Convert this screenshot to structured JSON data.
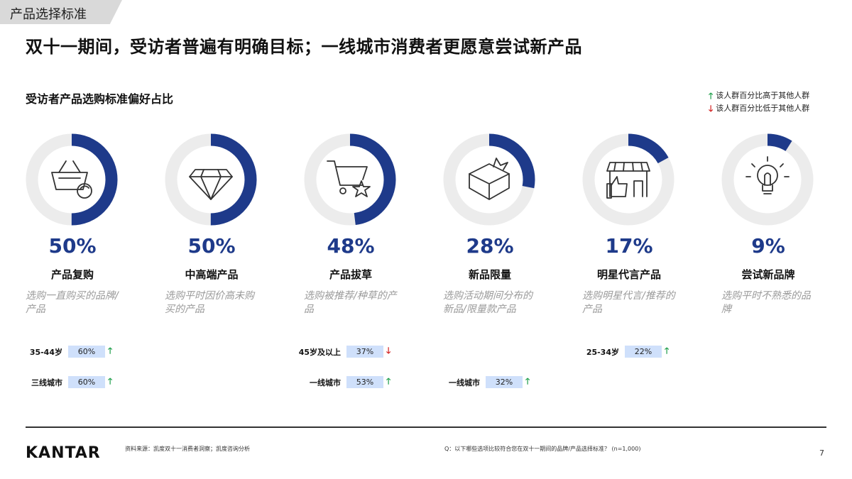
{
  "section_tag": "产品选择标准",
  "headline": "双十一期间，受访者普遍有明确目标；一线城市消费者更愿意尝试新产品",
  "chart_title": "受访者产品选购标准偏好占比",
  "legend": {
    "up_label": "该人群百分比高于其他人群",
    "down_label": "该人群百分比低于其他人群",
    "up_color": "#1e9e4a",
    "down_color": "#d21f1f"
  },
  "colors": {
    "ring_fill": "#1e3a8a",
    "ring_track": "#ececec",
    "stat_bg": "#cfe0fb"
  },
  "chart_data": {
    "type": "donut",
    "title": "受访者产品选购标准偏好占比",
    "categories": [
      {
        "name": "产品复购",
        "value": 50,
        "display": "50%",
        "icon": "basket-refresh-icon",
        "description": "选购一直购买的品牌/产品",
        "segments": [
          {
            "label": "35-44岁",
            "value": "60%",
            "trend": "up"
          },
          {
            "label": "三线城市",
            "value": "60%",
            "trend": "up"
          }
        ]
      },
      {
        "name": "中高端产品",
        "value": 50,
        "display": "50%",
        "icon": "diamond-icon",
        "description": "选购平时因价高未购买的产品",
        "segments": []
      },
      {
        "name": "产品拔草",
        "value": 48,
        "display": "48%",
        "icon": "cart-star-icon",
        "description": "选购被推荐/种草的产品",
        "segments": [
          {
            "label": "45岁及以上",
            "value": "37%",
            "trend": "down"
          },
          {
            "label": "一线城市",
            "value": "53%",
            "trend": "up"
          }
        ]
      },
      {
        "name": "新品限量",
        "value": 28,
        "display": "28%",
        "icon": "gift-box-icon",
        "description": "选购活动期间分布的新品/限量款产品",
        "segments": [
          {
            "label": "一线城市",
            "value": "32%",
            "trend": "up"
          }
        ]
      },
      {
        "name": "明星代言产品",
        "value": 17,
        "display": "17%",
        "icon": "store-thumbs-up-icon",
        "description": "选购明星代言/推荐的产品",
        "segments": [
          {
            "label": "25-34岁",
            "value": "22%",
            "trend": "up"
          }
        ]
      },
      {
        "name": "尝试新品牌",
        "value": 9,
        "display": "9%",
        "icon": "lightbulb-icon",
        "description": "选购平时不熟悉的品牌",
        "segments": []
      }
    ]
  },
  "footer": {
    "logo": "KANTAR",
    "source": "资料来源：凯度双十一消费者洞察；凯度咨询分析",
    "question": "Q：以下哪些选项比较符合您在双十一期间的品牌/产品选择标准？ (n=1,000)",
    "page": "7"
  }
}
